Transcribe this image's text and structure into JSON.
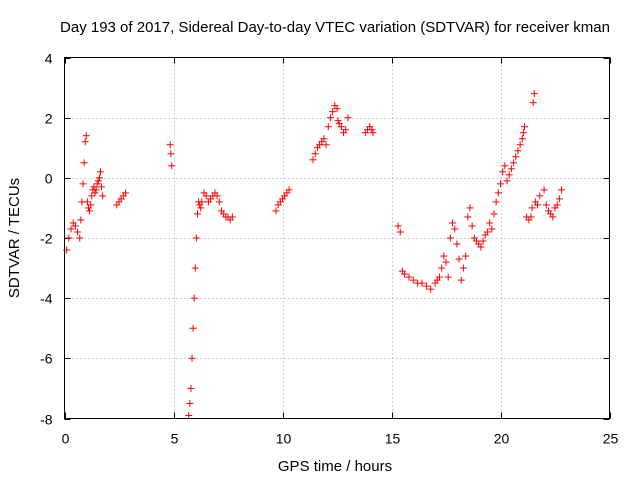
{
  "chart_data": {
    "type": "scatter",
    "title": "Day 193 of 2017, Sidereal Day-to-day VTEC variation (SDTVAR) for receiver kman",
    "xlabel": "GPS time / hours",
    "ylabel": "SDTVAR / TECUs",
    "xlim": [
      0,
      25
    ],
    "ylim": [
      -8,
      4
    ],
    "xticks": [
      0,
      5,
      10,
      15,
      20,
      25
    ],
    "yticks": [
      -8,
      -6,
      -4,
      -2,
      0,
      2,
      4
    ],
    "xtick_labels": [
      "0",
      "5",
      "10",
      "15",
      "20",
      "25"
    ],
    "ytick_labels": [
      "-8",
      "-6",
      "-4",
      "-2",
      "0",
      "2",
      "4"
    ],
    "grid": true,
    "marker": "+",
    "color": "#ff0000",
    "series": [
      {
        "name": "SDTVAR",
        "x": [
          0.1,
          0.2,
          0.3,
          0.4,
          0.5,
          0.6,
          0.7,
          0.75,
          0.8,
          0.85,
          0.9,
          0.95,
          1.0,
          1.05,
          1.1,
          1.15,
          1.2,
          1.25,
          1.3,
          1.35,
          1.4,
          1.45,
          1.5,
          1.55,
          1.6,
          1.65,
          1.7,
          1.75,
          2.4,
          2.5,
          2.6,
          2.7,
          2.8,
          4.85,
          4.88,
          4.92,
          5.7,
          5.75,
          5.8,
          5.85,
          5.9,
          5.95,
          6.0,
          6.05,
          6.1,
          6.15,
          6.2,
          6.25,
          6.3,
          6.4,
          6.5,
          6.6,
          6.7,
          6.8,
          6.9,
          7.0,
          7.1,
          7.2,
          7.3,
          7.4,
          7.5,
          7.6,
          7.7,
          9.7,
          9.8,
          9.9,
          10.0,
          10.1,
          10.2,
          10.3,
          11.4,
          11.5,
          11.6,
          11.7,
          11.8,
          11.9,
          12.0,
          12.1,
          12.2,
          12.3,
          12.4,
          12.5,
          12.55,
          12.6,
          12.7,
          12.8,
          12.9,
          13.0,
          13.8,
          13.9,
          14.0,
          14.1,
          14.15,
          15.3,
          15.4,
          15.5,
          15.6,
          15.8,
          16.0,
          16.2,
          16.4,
          16.6,
          16.8,
          17.0,
          17.1,
          17.2,
          17.3,
          17.4,
          17.5,
          17.6,
          17.7,
          17.8,
          17.9,
          18.0,
          18.1,
          18.2,
          18.3,
          18.4,
          18.5,
          18.6,
          18.7,
          18.8,
          18.9,
          19.0,
          19.1,
          19.2,
          19.3,
          19.4,
          19.5,
          19.6,
          19.7,
          19.8,
          19.9,
          20.0,
          20.1,
          20.2,
          20.3,
          20.4,
          20.5,
          20.6,
          20.7,
          20.8,
          20.9,
          21.0,
          21.05,
          21.1,
          21.2,
          21.3,
          21.4,
          21.45,
          21.5,
          21.55,
          21.6,
          21.7,
          21.8,
          22.0,
          22.1,
          22.2,
          22.3,
          22.4,
          22.5,
          22.6,
          22.7,
          22.8
        ],
        "y": [
          -2.4,
          -2.0,
          -1.7,
          -1.5,
          -1.6,
          -1.8,
          -2.0,
          -1.4,
          -0.8,
          -0.2,
          0.5,
          1.2,
          1.4,
          -0.8,
          -1.0,
          -1.1,
          -0.9,
          -0.6,
          -0.4,
          -0.3,
          -0.5,
          -0.4,
          -0.2,
          -0.1,
          0.0,
          0.2,
          -0.3,
          -0.6,
          -0.9,
          -0.8,
          -0.7,
          -0.6,
          -0.5,
          1.1,
          0.8,
          0.4,
          -7.9,
          -7.5,
          -7.0,
          -6.0,
          -5.0,
          -4.0,
          -3.0,
          -2.0,
          -1.2,
          -0.8,
          -0.9,
          -1.0,
          -0.8,
          -0.5,
          -0.6,
          -0.8,
          -0.7,
          -0.6,
          -0.5,
          -0.6,
          -0.8,
          -1.1,
          -1.2,
          -1.3,
          -1.3,
          -1.4,
          -1.3,
          -1.1,
          -0.9,
          -0.8,
          -0.7,
          -0.6,
          -0.5,
          -0.4,
          0.6,
          0.8,
          1.0,
          1.1,
          1.2,
          1.3,
          1.1,
          1.7,
          2.0,
          2.2,
          2.4,
          2.3,
          1.9,
          1.8,
          1.7,
          1.5,
          1.6,
          2.0,
          1.5,
          1.6,
          1.7,
          1.6,
          1.5,
          -1.6,
          -1.8,
          -3.1,
          -3.2,
          -3.3,
          -3.4,
          -3.5,
          -3.5,
          -3.6,
          -3.7,
          -3.5,
          -3.4,
          -3.3,
          -3.0,
          -2.6,
          -2.8,
          -3.3,
          -2.0,
          -1.5,
          -1.7,
          -2.2,
          -2.7,
          -3.4,
          -3.0,
          -2.6,
          -1.3,
          -1.0,
          -1.6,
          -2.0,
          -2.1,
          -2.2,
          -2.3,
          -2.1,
          -1.9,
          -1.8,
          -1.5,
          -1.7,
          -1.2,
          -0.8,
          -0.5,
          -0.2,
          0.2,
          0.4,
          -0.1,
          0.1,
          0.3,
          0.5,
          0.7,
          0.9,
          1.1,
          1.3,
          1.5,
          1.7,
          -1.3,
          -1.4,
          -1.3,
          -1.0,
          2.5,
          2.8,
          -0.8,
          -0.9,
          -0.6,
          -0.4,
          -0.9,
          -1.1,
          -1.2,
          -1.3,
          -1.0,
          -0.9,
          -0.7,
          -0.4
        ]
      }
    ]
  }
}
